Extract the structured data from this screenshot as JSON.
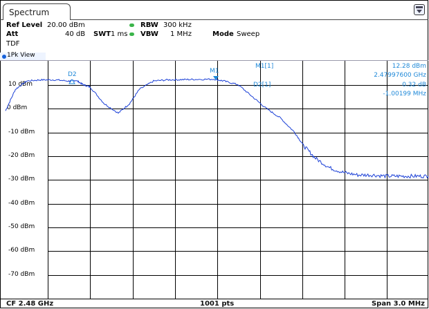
{
  "tab": {
    "title": "Spectrum"
  },
  "settings": {
    "ref_level_label": "Ref Level",
    "ref_level_value": "20.00 dBm",
    "att_label": "Att",
    "att_value": "40 dB",
    "swt_label": "SWT",
    "swt_value": "1 ms",
    "rbw_label": "RBW",
    "rbw_value": "300 kHz",
    "vbw_label": "VBW",
    "vbw_value": "1 MHz",
    "mode_label": "Mode",
    "mode_value": "Sweep",
    "tdf": "TDF"
  },
  "view": {
    "label": "1Pk View"
  },
  "y_axis": {
    "labels": [
      "10 dBm",
      "0 dBm",
      "-10 dBm",
      "-20 dBm",
      "-30 dBm",
      "-40 dBm",
      "-50 dBm",
      "-60 dBm",
      "-70 dBm"
    ]
  },
  "markers": {
    "m1_tag": "M1",
    "d2_tag": "D2",
    "m1_readout_label": "M1[1]",
    "m1_level": "12.28 dBm",
    "m1_freq": "2.47997600 GHz",
    "d2_readout_label": "D2[1]",
    "d2_level": "0.32 dB",
    "d2_freq": "-1.00199 MHz"
  },
  "footer": {
    "cf": "CF 2.48 GHz",
    "pts": "1001 pts",
    "span": "Span 3.0 MHz"
  },
  "colors": {
    "trace": "#1a3fd6",
    "marker": "#1e88d8",
    "status_dot": "#3bb54a"
  },
  "chart_data": {
    "type": "line",
    "xlabel": "",
    "ylabel": "",
    "x_range_mhz": [
      -1.5,
      1.5
    ],
    "ylim": [
      -80,
      20
    ],
    "grid": true,
    "series": [
      {
        "x": [
          -1.5,
          -1.43,
          -1.35,
          -1.25,
          -1.15,
          -1.05,
          -1.0,
          -0.95,
          -0.9,
          -0.8,
          -0.7,
          -0.62,
          -0.55,
          -0.45,
          -0.35,
          -0.25,
          -0.15,
          -0.02,
          0.05,
          0.15,
          0.25,
          0.35,
          0.45,
          0.55,
          0.62,
          0.7,
          0.8,
          0.9,
          1.0,
          1.1,
          1.2,
          1.3,
          1.4,
          1.5
        ],
        "values": [
          -1,
          8,
          11.5,
          12,
          12,
          11.5,
          11.8,
          10,
          9,
          2,
          -2,
          2,
          8,
          11.5,
          12,
          12.1,
          12.2,
          12.28,
          11.5,
          10,
          5,
          0,
          -4,
          -10,
          -16,
          -21,
          -25,
          -27,
          -28,
          -28,
          -28.5,
          -28.5,
          -28.5,
          -28.5
        ]
      }
    ]
  }
}
